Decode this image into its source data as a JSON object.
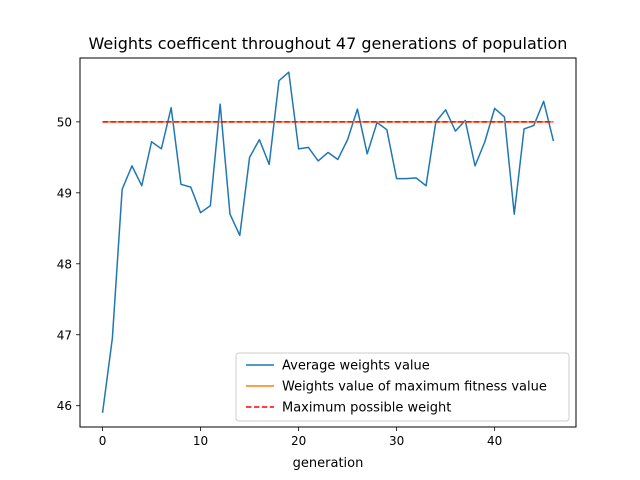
{
  "chart_data": {
    "type": "line",
    "title": "Weights coefficent throughout 47 generations of population",
    "xlabel": "generation",
    "ylabel": "",
    "xlim": [
      -2.3,
      48.3
    ],
    "ylim": [
      45.7,
      50.9
    ],
    "xticks": [
      0,
      10,
      20,
      30,
      40
    ],
    "yticks": [
      46,
      47,
      48,
      49,
      50
    ],
    "grid": false,
    "legend_position": "lower-right",
    "x": [
      0,
      1,
      2,
      3,
      4,
      5,
      6,
      7,
      8,
      9,
      10,
      11,
      12,
      13,
      14,
      15,
      16,
      17,
      18,
      19,
      20,
      21,
      22,
      23,
      24,
      25,
      26,
      27,
      28,
      29,
      30,
      31,
      32,
      33,
      34,
      35,
      36,
      37,
      38,
      39,
      40,
      41,
      42,
      43,
      44,
      45,
      46
    ],
    "series": [
      {
        "name": "Average weights value",
        "color": "#1f77b4",
        "style": "solid",
        "values": [
          45.9,
          46.95,
          49.05,
          49.38,
          49.1,
          49.72,
          49.62,
          50.2,
          49.12,
          49.08,
          48.72,
          48.82,
          50.25,
          48.7,
          48.4,
          49.5,
          49.75,
          49.4,
          50.58,
          50.7,
          49.62,
          49.64,
          49.45,
          49.57,
          49.47,
          49.75,
          50.18,
          49.55,
          49.99,
          49.89,
          49.2,
          49.2,
          49.21,
          49.1,
          50.0,
          50.17,
          49.87,
          50.02,
          49.38,
          49.72,
          50.19,
          50.07,
          48.7,
          49.9,
          49.95,
          50.29,
          49.73
        ]
      },
      {
        "name": "Weights value of maximum fitness value",
        "color": "#ff7f0e",
        "style": "solid",
        "values": [
          50,
          50,
          50,
          50,
          50,
          50,
          50,
          50,
          50,
          50,
          50,
          50,
          50,
          50,
          50,
          50,
          50,
          50,
          50,
          50,
          50,
          50,
          50,
          50,
          50,
          50,
          50,
          50,
          50,
          50,
          50,
          50,
          50,
          50,
          50,
          50,
          50,
          50,
          50,
          50,
          50,
          50,
          50,
          50,
          50,
          50,
          50
        ]
      },
      {
        "name": "Maximum possible weight",
        "color": "#ff0000",
        "style": "dashed",
        "values": [
          50,
          50,
          50,
          50,
          50,
          50,
          50,
          50,
          50,
          50,
          50,
          50,
          50,
          50,
          50,
          50,
          50,
          50,
          50,
          50,
          50,
          50,
          50,
          50,
          50,
          50,
          50,
          50,
          50,
          50,
          50,
          50,
          50,
          50,
          50,
          50,
          50,
          50,
          50,
          50,
          50,
          50,
          50,
          50,
          50,
          50,
          50
        ]
      }
    ]
  }
}
